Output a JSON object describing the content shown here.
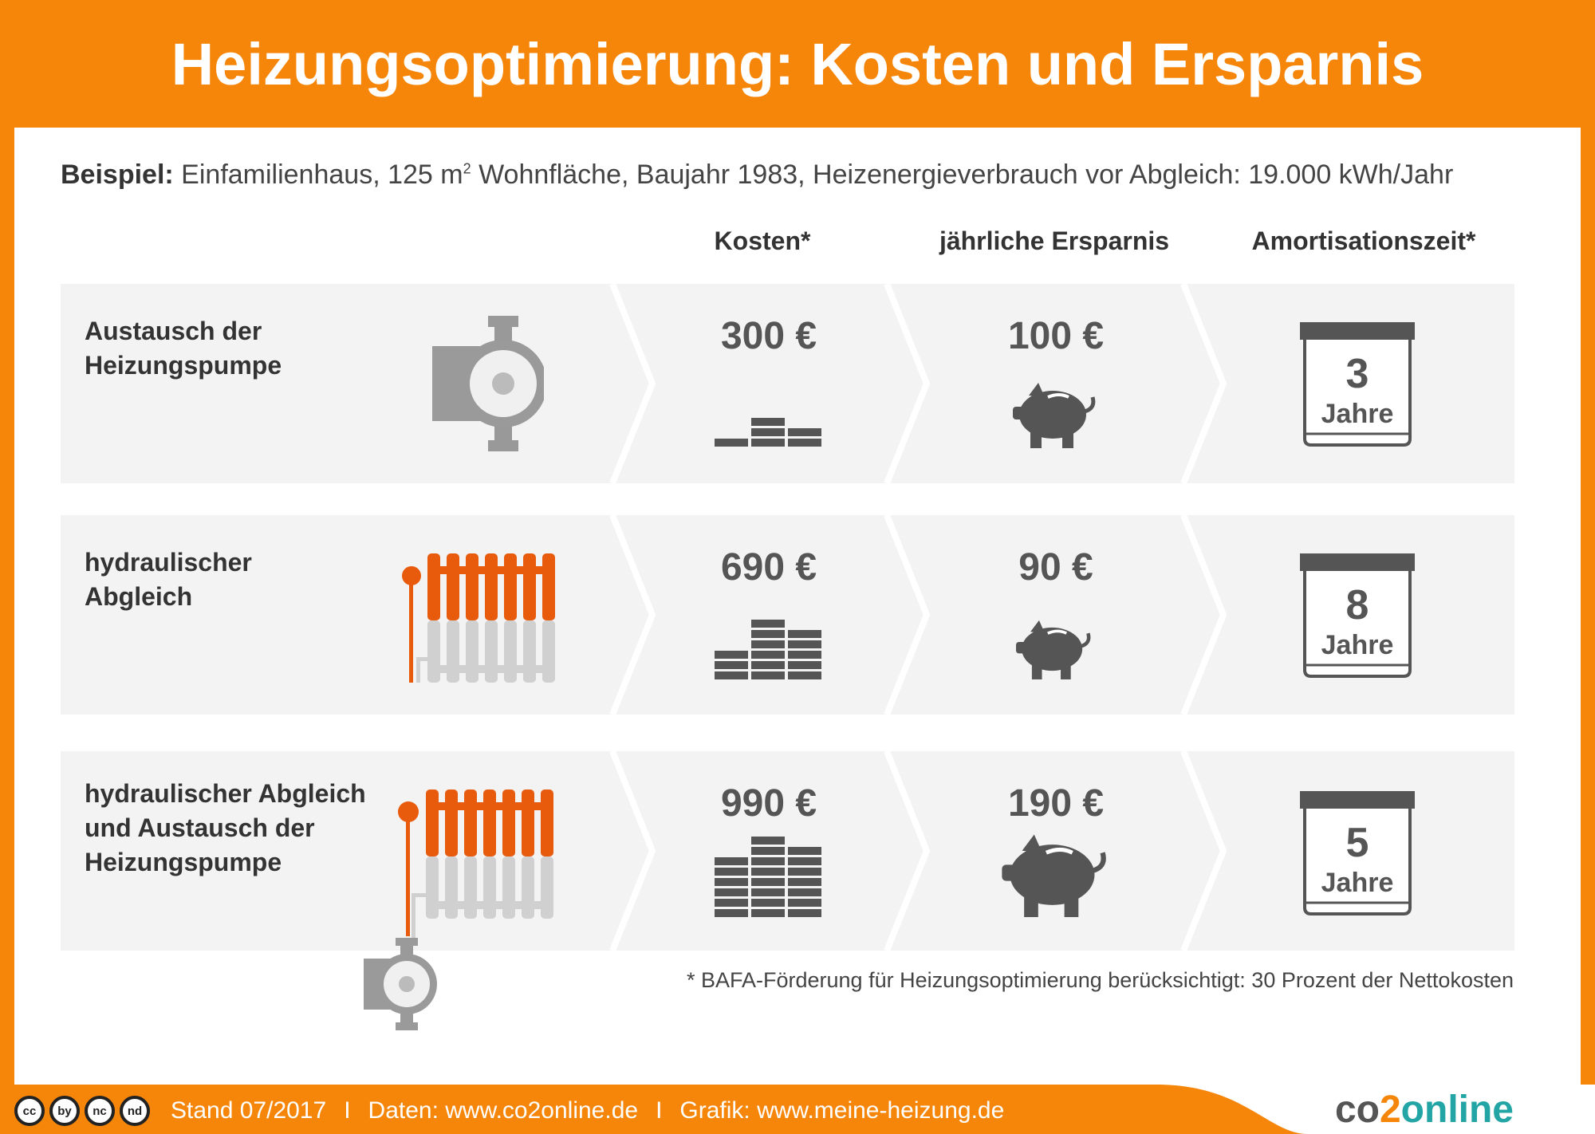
{
  "title": "Heizungsoptimierung: Kosten und Ersparnis",
  "example": {
    "label": "Beispiel:",
    "text_a": "Einfamilienhaus, 125 m",
    "sup": "2",
    "text_b": "Wohnfläche, Baujahr 1983, Heizenergieverbrauch vor Abgleich: 19.000 kWh/Jahr"
  },
  "columns": {
    "cost": "Kosten*",
    "savings": "jährliche Ersparnis",
    "payback": "Amortisationszeit*"
  },
  "rows": [
    {
      "label_lines": [
        "Austausch der",
        "Heizungspumpe"
      ],
      "cost": "300 €",
      "savings": "100 €",
      "years": "3",
      "years_unit": "Jahre"
    },
    {
      "label_lines": [
        "hydraulischer",
        "Abgleich"
      ],
      "cost": "690 €",
      "savings": "90 €",
      "years": "8",
      "years_unit": "Jahre"
    },
    {
      "label_lines": [
        "hydraulischer Abgleich",
        "und Austausch der",
        "Heizungspumpe"
      ],
      "cost": "990 €",
      "savings": "190 €",
      "years": "5",
      "years_unit": "Jahre"
    }
  ],
  "footnote": "* BAFA-Förderung für Heizungsoptimierung berücksichtigt: 30 Prozent der Nettokosten",
  "footer": {
    "stand": "Stand 07/2017",
    "sep": "I",
    "daten": "Daten: www.co2online.de",
    "grafik": "Grafik: www.meine-heizung.de"
  },
  "license_icons": [
    "cc",
    "by",
    "nc",
    "nd"
  ],
  "license_icon_names": [
    "cc-icon",
    "attribution-icon",
    "noncommercial-icon",
    "noderivatives-icon"
  ],
  "logo": {
    "part1": "co",
    "part2": "2",
    "part3": "online"
  },
  "colors": {
    "orange": "#F5860A",
    "radiator_red": "#E85A0C",
    "gray_icon": "#5A5A5A",
    "row_bg": "#F3F3F3",
    "logo_teal": "#23A5A5"
  }
}
